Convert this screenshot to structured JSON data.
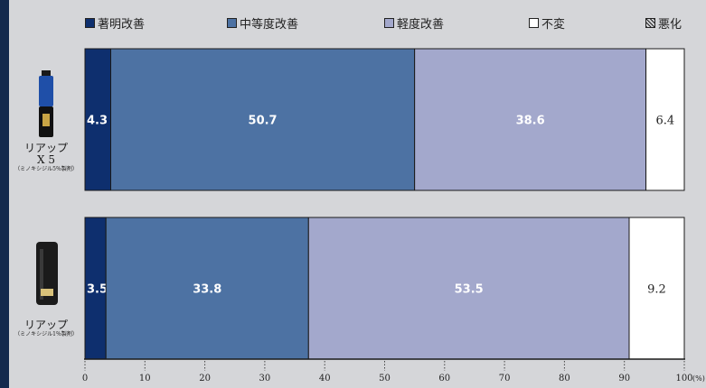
{
  "legend": [
    {
      "label": "著明改善",
      "color": "#0e2f6e",
      "pattern": false
    },
    {
      "label": "中等度改善",
      "color": "#4d72a3",
      "pattern": false
    },
    {
      "label": "軽度改善",
      "color": "#a3a8cc",
      "pattern": false
    },
    {
      "label": "不変",
      "color": "#ffffff",
      "pattern": false
    },
    {
      "label": "悪化",
      "color": "#8a8a8a",
      "pattern": true
    }
  ],
  "products": [
    {
      "name_line1": "リアップ",
      "name_line2": "X 5",
      "sub": "（ミノキシジル5％製剤）",
      "bottle_color": "#1f4fa8"
    },
    {
      "name_line1": "リアップ",
      "name_line2": "",
      "sub": "（ミノキシジル1％製剤）",
      "bottle_color": "#222222"
    }
  ],
  "chart_data": {
    "type": "bar",
    "orientation": "horizontal",
    "stacked": true,
    "categories": [
      "リアップX5（ミノキシジル5％製剤）",
      "リアップ（ミノキシジル1％製剤）"
    ],
    "series": [
      {
        "name": "著明改善",
        "values": [
          4.3,
          3.5
        ],
        "color": "#0e2f6e",
        "label_color": "#ffffff"
      },
      {
        "name": "中等度改善",
        "values": [
          50.7,
          33.8
        ],
        "color": "#4d72a3",
        "label_color": "#ffffff"
      },
      {
        "name": "軽度改善",
        "values": [
          38.6,
          53.5
        ],
        "color": "#a3a8cc",
        "label_color": "#ffffff"
      },
      {
        "name": "不変",
        "values": [
          6.4,
          9.2
        ],
        "color": "#ffffff",
        "label_color": "#222222"
      },
      {
        "name": "悪化",
        "values": [
          0,
          0
        ],
        "color": "#8a8a8a",
        "label_color": "#222222"
      }
    ],
    "xlim": [
      0,
      100
    ],
    "xticks": [
      0,
      10,
      20,
      30,
      40,
      50,
      60,
      70,
      80,
      90,
      100
    ],
    "xunit": "(%)",
    "legend_position": "top"
  }
}
